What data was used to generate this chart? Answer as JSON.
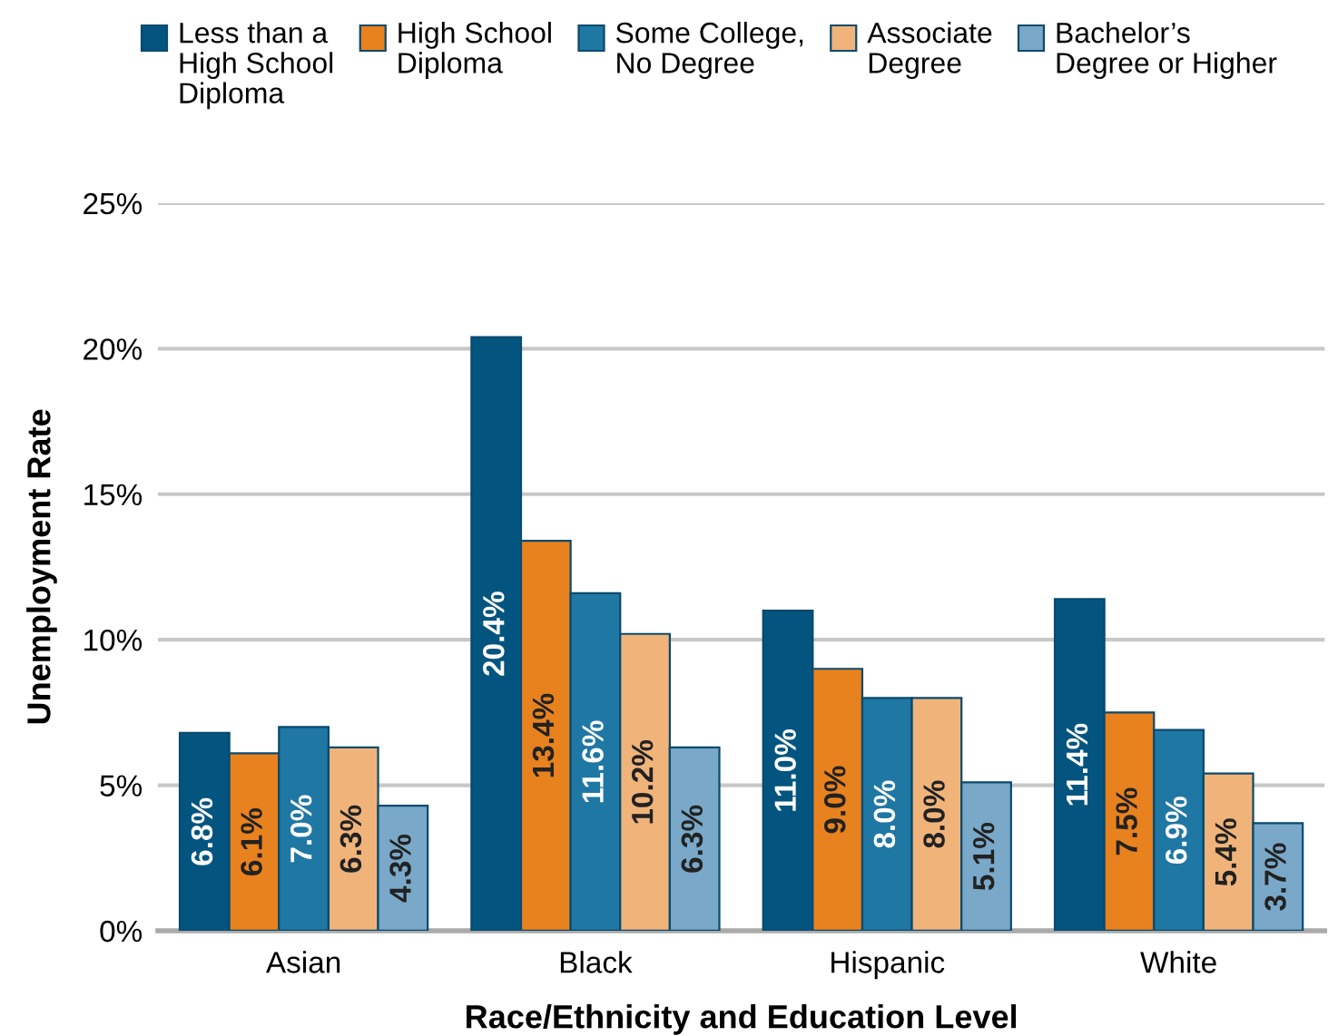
{
  "chart_data": {
    "type": "bar",
    "xlabel": "Race/Ethnicity and Education Level",
    "ylabel": "Unemployment Rate",
    "categories": [
      "Asian",
      "Black",
      "Hispanic",
      "White"
    ],
    "series": [
      {
        "name": "Less than a\nHigh School\nDiploma",
        "color": "#03557f",
        "values": [
          6.8,
          20.4,
          11.0,
          11.4
        ],
        "value_labels": [
          "6.8%",
          "20.4%",
          "11.0%",
          "11.4%"
        ]
      },
      {
        "name": "High School\nDiploma",
        "color": "#e8821e",
        "values": [
          6.1,
          13.4,
          9.0,
          7.5
        ],
        "value_labels": [
          "6.1%",
          "13.4%",
          "9.0%",
          "7.5%"
        ]
      },
      {
        "name": "Some College,\nNo Degree",
        "color": "#1f77a4",
        "values": [
          7.0,
          11.6,
          8.0,
          6.9
        ],
        "value_labels": [
          "7.0%",
          "11.6%",
          "8.0%",
          "6.9%"
        ]
      },
      {
        "name": "Associate\nDegree",
        "color": "#f0b47b",
        "values": [
          6.3,
          10.2,
          8.0,
          5.4
        ],
        "value_labels": [
          "6.3%",
          "10.2%",
          "8.0%",
          "5.4%"
        ]
      },
      {
        "name": "Bachelor’s\nDegree or Higher",
        "color": "#79a8c9",
        "values": [
          4.3,
          6.3,
          5.1,
          3.7
        ],
        "value_labels": [
          "4.3%",
          "6.3%",
          "5.1%",
          "3.7%"
        ]
      }
    ],
    "ylim": [
      0,
      25
    ],
    "yticks": [
      {
        "value": 0,
        "label": "0%"
      },
      {
        "value": 5,
        "label": "5%"
      },
      {
        "value": 10,
        "label": "10%"
      },
      {
        "value": 15,
        "label": "15%"
      },
      {
        "value": 20,
        "label": "20%"
      },
      {
        "value": 25,
        "label": "25%"
      }
    ],
    "grid": "y",
    "legend": "top"
  }
}
